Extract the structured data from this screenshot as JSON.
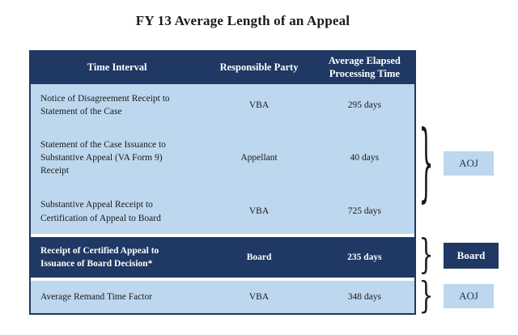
{
  "chart_data": {
    "type": "table",
    "title": "FY 13 Average Length of an Appeal",
    "columns": [
      "Time Interval",
      "Responsible Party",
      "Average Elapsed Processing Time"
    ],
    "rows": [
      [
        "Notice of Disagreement Receipt to Statement of the Case",
        "VBA",
        "295 days"
      ],
      [
        "Statement of the Case Issuance to Substantive Appeal (VA Form 9) Receipt",
        "Appellant",
        "40 days"
      ],
      [
        "Substantive Appeal Receipt to Certification of Appeal to Board",
        "VBA",
        "725 days"
      ],
      [
        "Receipt of Certified Appeal to Issuance of Board Decision*",
        "Board",
        "235 days"
      ],
      [
        "Average Remand Time Factor",
        "VBA",
        "348 days"
      ]
    ],
    "values_days": [
      295,
      40,
      725,
      235,
      348
    ],
    "highlighted_row_index": 3,
    "groupings": [
      {
        "label": "AOJ",
        "rows": [
          0,
          1,
          2
        ],
        "style": "light"
      },
      {
        "label": "Board",
        "rows": [
          3
        ],
        "style": "dark"
      },
      {
        "label": "AOJ",
        "rows": [
          4
        ],
        "style": "light"
      }
    ]
  },
  "colors": {
    "header_bg": "#1F3864",
    "row_bg": "#BDD7EE",
    "highlight_bg": "#1F3864",
    "header_text": "#FFFFFF",
    "body_text": "#1A1A1A",
    "title_text": "#1A1A1A"
  }
}
